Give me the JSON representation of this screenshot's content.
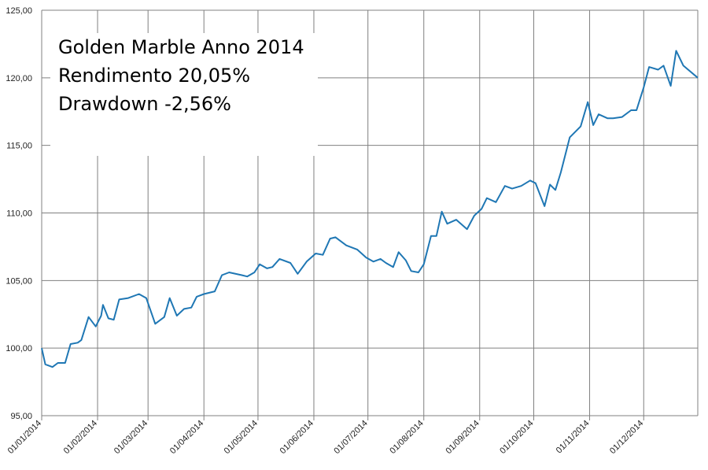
{
  "chart_data": {
    "type": "line",
    "title": "",
    "xlabel": "",
    "ylabel": "",
    "ylim": [
      95,
      125
    ],
    "grid": true,
    "legend": "none",
    "line_color": "#1F77B4",
    "grid_color": "#808080",
    "y_ticks": [
      "95,00",
      "100,00",
      "105,00",
      "110,00",
      "115,00",
      "120,00",
      "125,00"
    ],
    "x_ticks": [
      "01/01/2014",
      "01/02/2014",
      "01/03/2014",
      "01/04/2014",
      "01/05/2014",
      "01/06/2014",
      "01/07/2014",
      "01/08/2014",
      "01/09/2014",
      "01/10/2014",
      "01/11/2014",
      "01/12/2014"
    ],
    "annotation": [
      "Golden Marble Anno 2014",
      "Rendimento 20,05%",
      "Drawdown -2,56%"
    ],
    "series": [
      {
        "x": [
          "2014-01-01",
          "2014-01-03",
          "2014-01-07",
          "2014-01-10",
          "2014-01-14",
          "2014-01-17",
          "2014-01-21",
          "2014-01-23",
          "2014-01-27",
          "2014-01-31",
          "2014-02-03",
          "2014-02-04",
          "2014-02-07",
          "2014-02-10",
          "2014-02-13",
          "2014-02-18",
          "2014-02-24",
          "2014-02-28",
          "2014-03-05",
          "2014-03-10",
          "2014-03-13",
          "2014-03-17",
          "2014-03-21",
          "2014-03-25",
          "2014-03-28",
          "2014-04-01",
          "2014-04-07",
          "2014-04-11",
          "2014-04-15",
          "2014-04-22",
          "2014-04-25",
          "2014-04-29",
          "2014-05-02",
          "2014-05-06",
          "2014-05-09",
          "2014-05-13",
          "2014-05-19",
          "2014-05-23",
          "2014-05-28",
          "2014-06-02",
          "2014-06-06",
          "2014-06-10",
          "2014-06-13",
          "2014-06-19",
          "2014-06-25",
          "2014-06-30",
          "2014-07-04",
          "2014-07-08",
          "2014-07-11",
          "2014-07-15",
          "2014-07-18",
          "2014-07-22",
          "2014-07-25",
          "2014-07-29",
          "2014-08-01",
          "2014-08-05",
          "2014-08-08",
          "2014-08-11",
          "2014-08-14",
          "2014-08-19",
          "2014-08-25",
          "2014-08-29",
          "2014-09-02",
          "2014-09-05",
          "2014-09-10",
          "2014-09-15",
          "2014-09-19",
          "2014-09-24",
          "2014-09-29",
          "2014-10-02",
          "2014-10-07",
          "2014-10-10",
          "2014-10-13",
          "2014-10-16",
          "2014-10-21",
          "2014-10-27",
          "2014-10-31",
          "2014-11-03",
          "2014-11-06",
          "2014-11-11",
          "2014-11-14",
          "2014-11-19",
          "2014-11-24",
          "2014-11-27",
          "2014-12-01",
          "2014-12-04",
          "2014-12-09",
          "2014-12-12",
          "2014-12-16",
          "2014-12-19",
          "2014-12-23",
          "2014-12-31"
        ],
        "values": [
          100.0,
          98.8,
          98.6,
          98.9,
          98.9,
          100.3,
          100.4,
          100.6,
          102.3,
          101.6,
          102.4,
          103.2,
          102.2,
          102.1,
          103.6,
          103.7,
          104.0,
          103.7,
          101.8,
          102.3,
          103.7,
          102.4,
          102.9,
          103.0,
          103.8,
          104.0,
          104.2,
          105.4,
          105.6,
          105.4,
          105.3,
          105.6,
          106.2,
          105.9,
          106.0,
          106.6,
          106.3,
          105.5,
          106.4,
          107.0,
          106.9,
          108.1,
          108.2,
          107.6,
          107.3,
          106.7,
          106.4,
          106.6,
          106.3,
          106.0,
          107.1,
          106.5,
          105.7,
          105.6,
          106.2,
          108.3,
          108.3,
          110.1,
          109.2,
          109.5,
          108.8,
          109.8,
          110.3,
          111.1,
          110.8,
          112.0,
          111.8,
          112.0,
          112.4,
          112.2,
          110.5,
          112.1,
          111.7,
          113.0,
          115.6,
          116.4,
          118.2,
          116.5,
          117.3,
          117.0,
          117.0,
          117.1,
          117.6,
          117.6,
          119.3,
          120.8,
          120.6,
          120.9,
          119.4,
          122.0,
          120.9,
          120.0
        ]
      }
    ]
  }
}
